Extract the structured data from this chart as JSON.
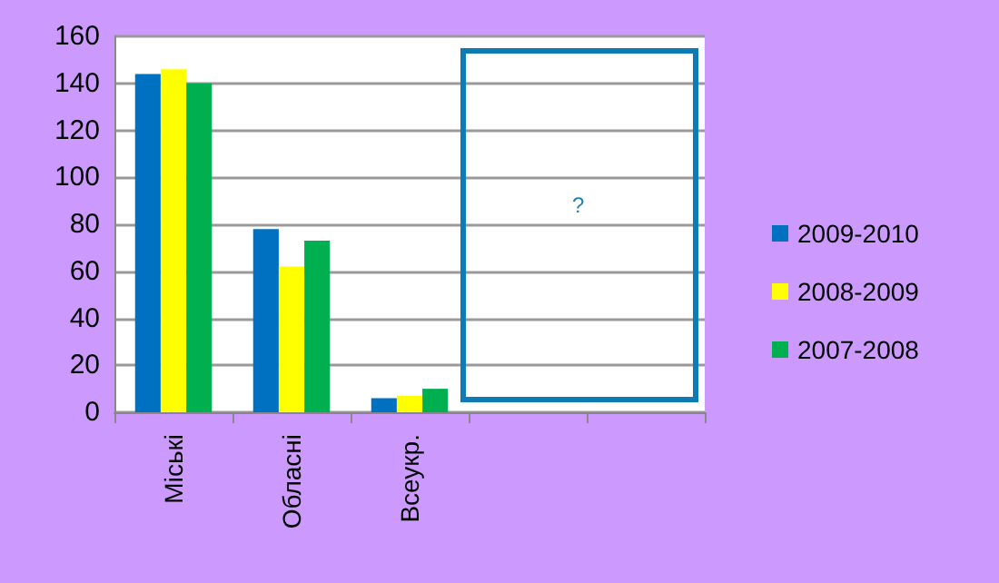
{
  "chart_data": {
    "type": "bar",
    "categories": [
      "Міські",
      "Обласні",
      "Всеукр.",
      null,
      null
    ],
    "series": [
      {
        "name": "2009-2010",
        "color": "#0070c0",
        "values": [
          144,
          78,
          6,
          null,
          null
        ]
      },
      {
        "name": "2008-2009",
        "color": "#ffff00",
        "values": [
          146,
          62,
          7,
          null,
          null
        ]
      },
      {
        "name": "2007-2008",
        "color": "#00b050",
        "values": [
          140,
          73,
          10,
          null,
          null
        ]
      }
    ],
    "ylim": [
      0,
      160
    ],
    "yticks": [
      0,
      20,
      40,
      60,
      80,
      100,
      120,
      140,
      160
    ],
    "grid": "y",
    "legend": "right",
    "annotations": [
      "?"
    ]
  }
}
